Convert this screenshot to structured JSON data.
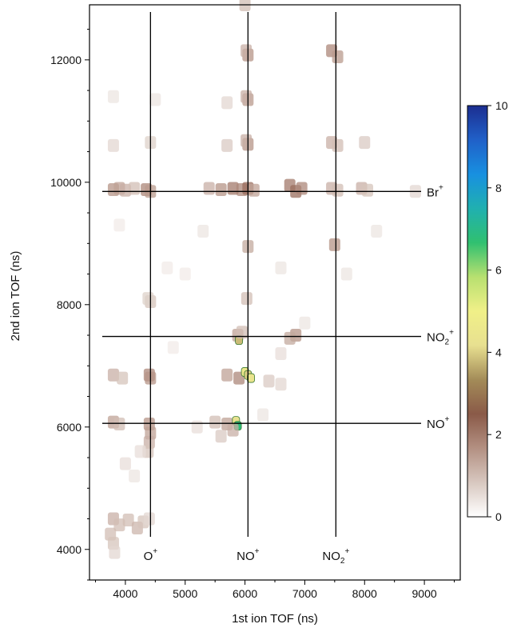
{
  "chart_data": {
    "type": "heatmap",
    "title": "",
    "xlabel": "1st ion TOF (ns)",
    "ylabel": "2nd ion TOF (ns)",
    "xlim": [
      3400,
      9600
    ],
    "ylim": [
      3500,
      12900
    ],
    "x_ticks": [
      {
        "value": 4000,
        "label": "4000"
      },
      {
        "value": 5000,
        "label": "5000"
      },
      {
        "value": 6000,
        "label": "6000"
      },
      {
        "value": 7000,
        "label": "7000"
      },
      {
        "value": 8000,
        "label": "8000"
      },
      {
        "value": 9000,
        "label": "9000"
      }
    ],
    "y_ticks": [
      {
        "value": 4000,
        "label": "4000"
      },
      {
        "value": 6000,
        "label": "6000"
      },
      {
        "value": 8000,
        "label": "8000"
      },
      {
        "value": 10000,
        "label": "10000"
      },
      {
        "value": 12000,
        "label": "12000"
      }
    ],
    "colorbar": {
      "min": 0,
      "max": 10,
      "ticks": [
        {
          "value": 0,
          "label": "0"
        },
        {
          "value": 2,
          "label": "2"
        },
        {
          "value": 4,
          "label": "4"
        },
        {
          "value": 6,
          "label": "6"
        },
        {
          "value": 8,
          "label": "8"
        },
        {
          "value": 10,
          "label": "10"
        }
      ],
      "colors": [
        "#ffffff",
        "#d8c8c0",
        "#b39082",
        "#8a5a48",
        "#a38b58",
        "#e8e090",
        "#f0f088",
        "#b8e070",
        "#30c070",
        "#20b0b0",
        "#1890e0",
        "#2060c8",
        "#1c2e90"
      ]
    },
    "vertical_lines": [
      {
        "x": 4420,
        "label": "O",
        "sup": "+",
        "sub": ""
      },
      {
        "x": 6050,
        "label": "NO",
        "sup": "+",
        "sub": ""
      },
      {
        "x": 7520,
        "label": "NO",
        "sup": "+",
        "sub": "2"
      }
    ],
    "horizontal_lines": [
      {
        "y": 9850,
        "label": "Br",
        "sup": "+",
        "sub": ""
      },
      {
        "y": 7480,
        "label": "NO",
        "sup": "+",
        "sub": "2"
      },
      {
        "y": 6060,
        "label": "NO",
        "sup": "+",
        "sub": ""
      }
    ],
    "grid": false,
    "cells": [
      [
        3800,
        9880,
        1.6
      ],
      [
        3900,
        9900,
        1.4
      ],
      [
        4000,
        9870,
        1.2
      ],
      [
        4150,
        9900,
        1.0
      ],
      [
        4350,
        9880,
        1.8
      ],
      [
        4420,
        9850,
        1.5
      ],
      [
        5400,
        9900,
        1.2
      ],
      [
        5600,
        9880,
        1.6
      ],
      [
        5800,
        9900,
        2.0
      ],
      [
        5950,
        9880,
        1.8
      ],
      [
        6050,
        9900,
        2.2
      ],
      [
        6150,
        9870,
        1.4
      ],
      [
        6750,
        9950,
        2.0
      ],
      [
        6850,
        9850,
        2.2
      ],
      [
        6950,
        9900,
        1.8
      ],
      [
        7450,
        9900,
        1.2
      ],
      [
        7550,
        9870,
        1.0
      ],
      [
        7950,
        9900,
        1.2
      ],
      [
        8050,
        9870,
        0.9
      ],
      [
        8850,
        9850,
        0.6
      ],
      [
        6000,
        12900,
        1.0
      ],
      [
        6050,
        12080,
        1.6
      ],
      [
        6020,
        12150,
        1.2
      ],
      [
        6050,
        11350,
        1.5
      ],
      [
        6020,
        11400,
        1.2
      ],
      [
        6050,
        10620,
        1.6
      ],
      [
        6020,
        10680,
        1.2
      ],
      [
        5700,
        10600,
        0.8
      ],
      [
        7450,
        12150,
        1.8
      ],
      [
        7550,
        12050,
        1.5
      ],
      [
        7450,
        10650,
        1.2
      ],
      [
        7550,
        10600,
        1.0
      ],
      [
        8000,
        10650,
        0.8
      ],
      [
        7500,
        8980,
        1.6
      ],
      [
        6050,
        8950,
        1.3
      ],
      [
        6030,
        8100,
        1.0
      ],
      [
        4420,
        8050,
        0.9
      ],
      [
        4380,
        8100,
        0.7
      ],
      [
        3800,
        10600,
        0.6
      ],
      [
        4420,
        10650,
        0.7
      ],
      [
        3800,
        11400,
        0.4
      ],
      [
        4500,
        11350,
        0.4
      ],
      [
        5700,
        11300,
        0.6
      ],
      [
        6850,
        7500,
        1.6
      ],
      [
        6750,
        7450,
        1.3
      ],
      [
        5880,
        7500,
        1.4
      ],
      [
        5900,
        7420,
        3.8
      ],
      [
        5950,
        7550,
        1.0
      ],
      [
        3800,
        6850,
        1.2
      ],
      [
        3950,
        6800,
        0.9
      ],
      [
        4400,
        6850,
        1.8
      ],
      [
        4420,
        6800,
        1.6
      ],
      [
        5700,
        6850,
        1.4
      ],
      [
        5900,
        6800,
        1.8
      ],
      [
        6000,
        6900,
        4.6
      ],
      [
        6050,
        6850,
        4.0
      ],
      [
        6100,
        6800,
        4.4
      ],
      [
        6400,
        6750,
        0.8
      ],
      [
        6600,
        6700,
        0.6
      ],
      [
        3800,
        6080,
        1.4
      ],
      [
        3900,
        6050,
        1.0
      ],
      [
        4400,
        6050,
        1.6
      ],
      [
        4420,
        5900,
        1.4
      ],
      [
        4400,
        5750,
        1.2
      ],
      [
        4380,
        5600,
        0.9
      ],
      [
        5500,
        6080,
        1.0
      ],
      [
        5700,
        6050,
        1.4
      ],
      [
        5850,
        6100,
        4.2
      ],
      [
        5880,
        6020,
        6.8
      ],
      [
        5800,
        5950,
        1.2
      ],
      [
        5600,
        5850,
        0.8
      ],
      [
        3800,
        4500,
        1.2
      ],
      [
        3900,
        4400,
        1.0
      ],
      [
        4050,
        4480,
        1.0
      ],
      [
        4200,
        4350,
        1.1
      ],
      [
        4300,
        4450,
        0.9
      ],
      [
        3750,
        4250,
        1.0
      ],
      [
        3800,
        4100,
        0.9
      ],
      [
        3820,
        3950,
        0.6
      ],
      [
        4400,
        4500,
        0.6
      ],
      [
        4000,
        5400,
        0.5
      ],
      [
        4150,
        5200,
        0.4
      ],
      [
        4250,
        5600,
        0.5
      ],
      [
        5200,
        6000,
        0.5
      ],
      [
        6300,
        6200,
        0.4
      ],
      [
        6600,
        7200,
        0.5
      ],
      [
        7000,
        7700,
        0.4
      ],
      [
        7700,
        8500,
        0.4
      ],
      [
        8200,
        9200,
        0.4
      ],
      [
        6600,
        8600,
        0.4
      ],
      [
        5300,
        9200,
        0.4
      ],
      [
        5000,
        8500,
        0.3
      ],
      [
        4700,
        8600,
        0.3
      ],
      [
        3900,
        9300,
        0.3
      ],
      [
        4800,
        7300,
        0.3
      ]
    ]
  }
}
